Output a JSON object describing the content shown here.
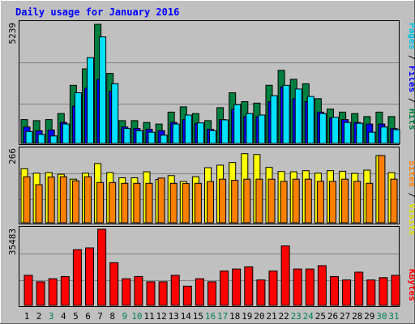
{
  "chart_data": [
    {
      "panel": "top",
      "type": "bar",
      "title": "Daily usage for January 2016",
      "categories": [
        "1",
        "2",
        "3",
        "4",
        "5",
        "6",
        "7",
        "8",
        "9",
        "10",
        "11",
        "12",
        "13",
        "14",
        "15",
        "16",
        "17",
        "18",
        "19",
        "20",
        "21",
        "22",
        "23",
        "24",
        "25",
        "26",
        "27",
        "28",
        "29",
        "30",
        "31"
      ],
      "weekend_days": [
        "3",
        "9",
        "10",
        "16",
        "17",
        "23",
        "24",
        "30",
        "31"
      ],
      "ymax_label": "5239",
      "ylim": [
        0,
        5239
      ],
      "axis_label": [
        "Pages",
        "Files",
        "Hits"
      ],
      "series": [
        {
          "name": "Hits",
          "color": "#008040",
          "values": [
            1049,
            1000,
            1049,
            1311,
            2557,
            3278,
            5239,
            3081,
            1000,
            1000,
            918,
            852,
            1377,
            1606,
            1311,
            1000,
            1573,
            2229,
            1836,
            1770,
            2557,
            3213,
            2819,
            2622,
            1967,
            1508,
            1377,
            1311,
            1180,
            1377,
            1180
          ]
        },
        {
          "name": "Files",
          "color": "#0000ff",
          "values": [
            721,
            557,
            590,
            918,
            1639,
            2426,
            2819,
            2295,
            721,
            655,
            623,
            557,
            918,
            1049,
            885,
            623,
            1049,
            1508,
            1180,
            1180,
            1836,
            2491,
            1967,
            1836,
            1377,
            1115,
            1049,
            918,
            852,
            852,
            655
          ]
        },
        {
          "name": "Pages",
          "color": "#00e0ff",
          "values": [
            525,
            393,
            328,
            852,
            2229,
            3769,
            4686,
            2622,
            656,
            558,
            492,
            361,
            852,
            1246,
            902,
            558,
            1033,
            1705,
            1311,
            1246,
            2098,
            2557,
            2393,
            2065,
            1311,
            1148,
            918,
            885,
            492,
            721,
            607
          ]
        }
      ]
    },
    {
      "panel": "middle",
      "type": "bar",
      "ymax_label": "266",
      "ylim": [
        0,
        266
      ],
      "axis_label": [
        "Sites",
        "Visits"
      ],
      "series": [
        {
          "name": "Visits",
          "color": "#ffff00",
          "values": [
            197,
            181,
            183,
            177,
            159,
            181,
            216,
            183,
            164,
            164,
            186,
            158,
            172,
            150,
            168,
            201,
            210,
            220,
            252,
            249,
            202,
            187,
            186,
            190,
            181,
            190,
            188,
            180,
            192,
            245,
            183
          ]
        },
        {
          "name": "Sites",
          "color": "#ff8000",
          "values": [
            168,
            139,
            167,
            168,
            153,
            168,
            147,
            147,
            144,
            144,
            144,
            163,
            144,
            143,
            144,
            150,
            159,
            155,
            159,
            159,
            159,
            151,
            159,
            159,
            151,
            151,
            159,
            151,
            144,
            245,
            159
          ]
        }
      ]
    },
    {
      "panel": "bottom",
      "type": "bar",
      "ymax_label": "35483",
      "ylim": [
        0,
        35483
      ],
      "axis_label": [
        "KBytes"
      ],
      "series": [
        {
          "name": "KBytes",
          "color": "#ff0000",
          "values": [
            14013,
            10966,
            12406,
            13457,
            25976,
            26812,
            35483,
            19877,
            12406,
            13457,
            10966,
            10966,
            14013,
            8929,
            12406,
            10966,
            16005,
            16945,
            17958,
            11858,
            16005,
            27712,
            16945,
            16945,
            18493,
            13457,
            11858,
            15477,
            11858,
            12906,
            14013
          ]
        }
      ]
    }
  ]
}
